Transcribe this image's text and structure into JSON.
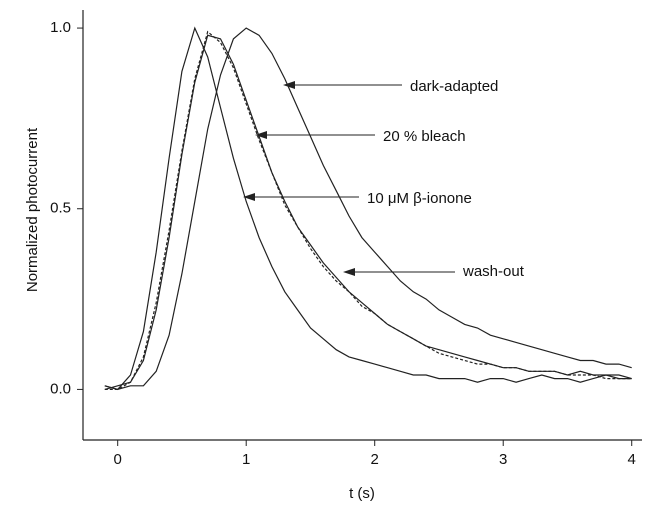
{
  "chart_data": {
    "type": "line",
    "xlabel": "t (s)",
    "ylabel": "Normalized photocurrent",
    "x": [
      -0.1,
      0,
      0.1,
      0.2,
      0.3,
      0.4,
      0.5,
      0.6,
      0.7,
      0.8,
      0.9,
      1.0,
      1.1,
      1.2,
      1.3,
      1.4,
      1.5,
      1.6,
      1.7,
      1.8,
      1.9,
      2.0,
      2.1,
      2.2,
      2.3,
      2.4,
      2.5,
      2.6,
      2.7,
      2.8,
      2.9,
      3.0,
      3.1,
      3.2,
      3.3,
      3.4,
      3.5,
      3.6,
      3.7,
      3.8,
      3.9,
      4.0
    ],
    "series": [
      {
        "name": "dark-adapted",
        "color": "#222222",
        "dashed": false,
        "values": [
          0.01,
          0,
          0.01,
          0.01,
          0.05,
          0.15,
          0.32,
          0.52,
          0.72,
          0.87,
          0.97,
          1.0,
          0.98,
          0.93,
          0.86,
          0.78,
          0.7,
          0.62,
          0.55,
          0.48,
          0.42,
          0.38,
          0.34,
          0.3,
          0.27,
          0.25,
          0.22,
          0.2,
          0.18,
          0.17,
          0.15,
          0.14,
          0.13,
          0.12,
          0.11,
          0.1,
          0.09,
          0.08,
          0.08,
          0.07,
          0.07,
          0.06
        ]
      },
      {
        "name": "20 % bleach",
        "color": "#222222",
        "dashed": false,
        "values": [
          0,
          0.01,
          0.02,
          0.08,
          0.22,
          0.42,
          0.65,
          0.85,
          0.98,
          0.97,
          0.9,
          0.8,
          0.7,
          0.6,
          0.52,
          0.45,
          0.4,
          0.35,
          0.31,
          0.27,
          0.24,
          0.21,
          0.18,
          0.16,
          0.14,
          0.12,
          0.11,
          0.1,
          0.09,
          0.08,
          0.07,
          0.06,
          0.06,
          0.05,
          0.05,
          0.05,
          0.04,
          0.05,
          0.04,
          0.04,
          0.04,
          0.03
        ]
      },
      {
        "name": "10 μM β-ionone",
        "color": "#222222",
        "dashed": false,
        "values": [
          0.01,
          0,
          0.04,
          0.16,
          0.38,
          0.64,
          0.88,
          1.0,
          0.92,
          0.78,
          0.64,
          0.52,
          0.42,
          0.34,
          0.27,
          0.22,
          0.17,
          0.14,
          0.11,
          0.09,
          0.08,
          0.07,
          0.06,
          0.05,
          0.04,
          0.04,
          0.03,
          0.03,
          0.03,
          0.02,
          0.03,
          0.03,
          0.02,
          0.03,
          0.04,
          0.03,
          0.03,
          0.02,
          0.03,
          0.04,
          0.03,
          0.03
        ]
      },
      {
        "name": "wash-out",
        "color": "#222222",
        "dashed": true,
        "values": [
          0,
          0,
          0.02,
          0.09,
          0.24,
          0.44,
          0.66,
          0.86,
          0.99,
          0.96,
          0.89,
          0.79,
          0.69,
          0.6,
          0.51,
          0.45,
          0.39,
          0.34,
          0.3,
          0.27,
          0.23,
          0.21,
          0.18,
          0.16,
          0.14,
          0.12,
          0.1,
          0.09,
          0.08,
          0.07,
          0.07,
          0.06,
          0.06,
          0.05,
          0.05,
          0.05,
          0.04,
          0.04,
          0.04,
          0.03,
          0.03,
          0.03
        ]
      }
    ],
    "xlim": [
      -0.27,
      4.08
    ],
    "ylim": [
      -0.14,
      1.05
    ],
    "xticks": [
      0,
      1,
      2,
      3,
      4
    ],
    "yticks": [
      {
        "value": 0,
        "label": "0.0"
      },
      {
        "value": 0.5,
        "label": "0.5"
      },
      {
        "value": 1,
        "label": "1.0"
      }
    ]
  }
}
